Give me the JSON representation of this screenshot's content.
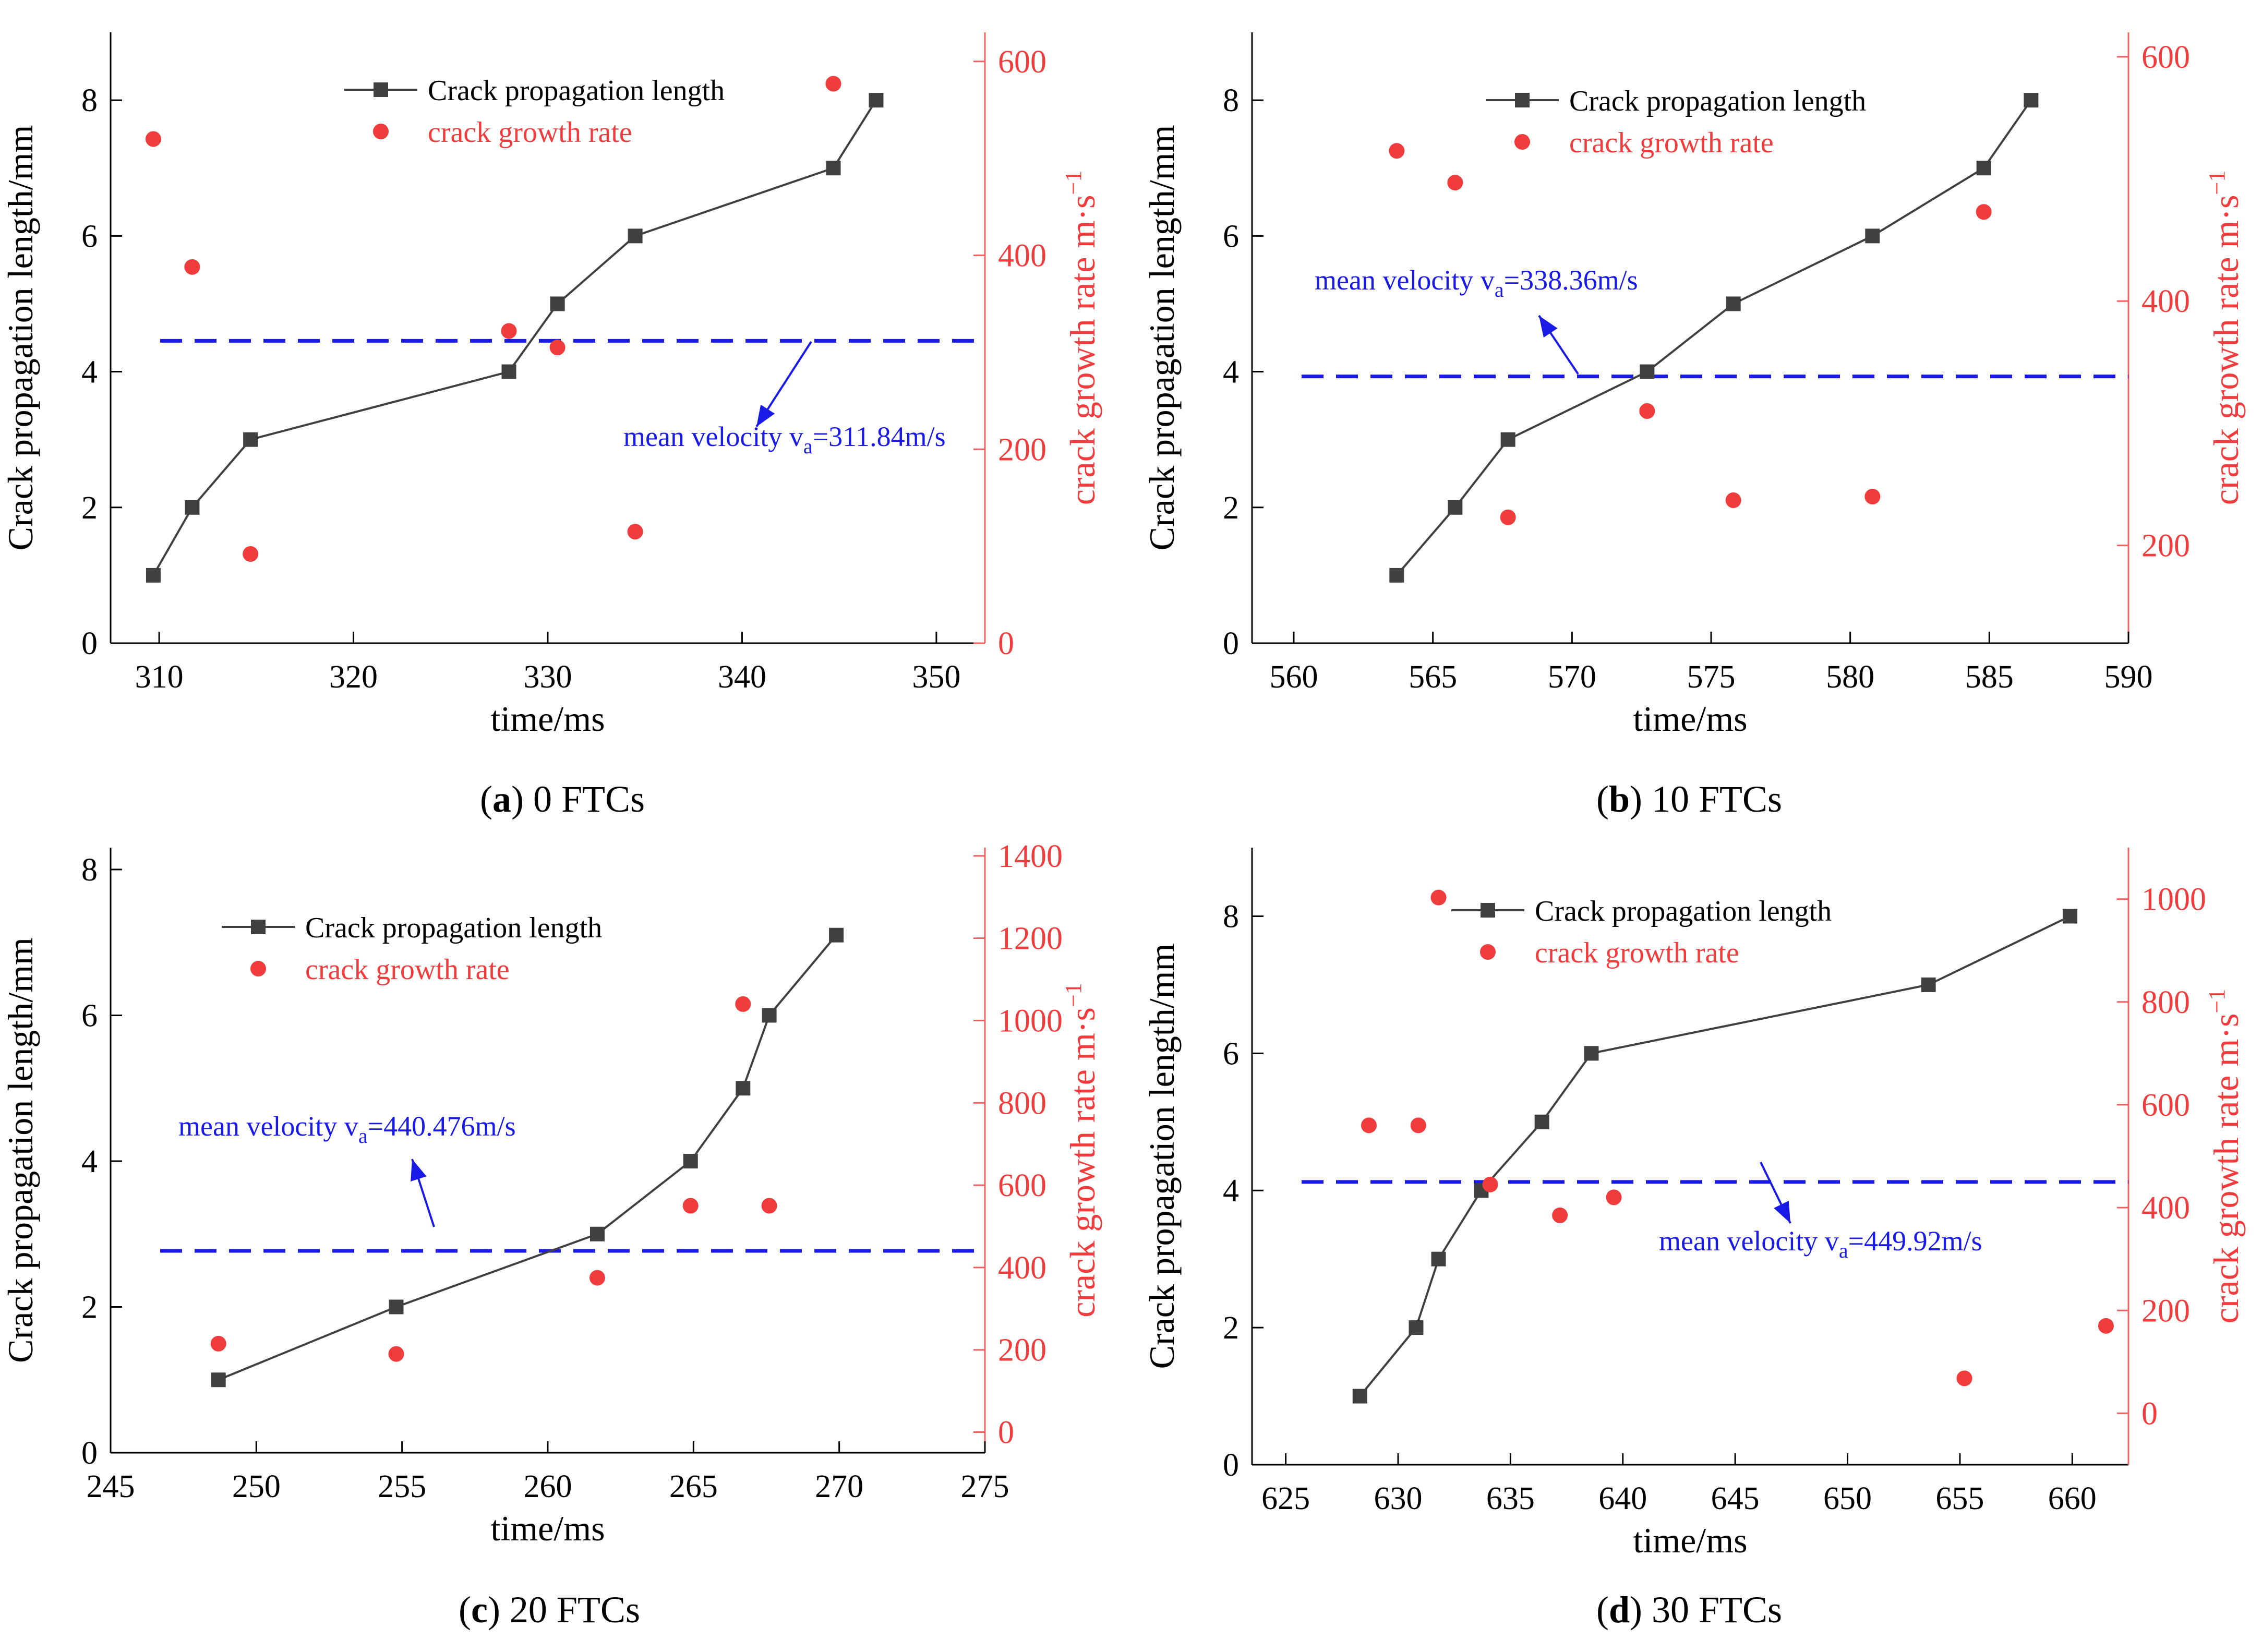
{
  "colors": {
    "line": "#404040",
    "rate": "#f03c3c",
    "mean": "#1a1ae6",
    "axis": "#000000",
    "axis_right": "#f06060"
  },
  "chart_data": [
    {
      "type": "line",
      "panel_tag": "a",
      "caption_text": " 0 FTCs",
      "xlabel": "time/ms",
      "ylabel_left": "Crack propagation length/mm",
      "ylabel_right": "crack growth rate m·s",
      "ylabel_right_sup": "−1",
      "xlim": [
        307.5,
        352.5
      ],
      "ylim_left": [
        0,
        9
      ],
      "ylim_right": [
        0,
        630
      ],
      "xticks": [
        310,
        320,
        330,
        340,
        350
      ],
      "yticks_left": [
        0,
        2,
        4,
        6,
        8
      ],
      "yticks_right": [
        0,
        200,
        400,
        600
      ],
      "legend_line": "Crack propagation length",
      "legend_dot": "crack growth rate",
      "series_length": {
        "name": "Crack propagation length",
        "x": [
          309.7,
          311.7,
          314.7,
          328.0,
          330.5,
          334.5,
          344.7,
          346.9
        ],
        "y": [
          1,
          2,
          3,
          4,
          5,
          6,
          7,
          8
        ]
      },
      "series_rate": {
        "name": "crack growth rate",
        "x": [
          309.7,
          311.7,
          314.7,
          328.0,
          330.5,
          334.5,
          344.7
        ],
        "y": [
          520,
          388,
          92,
          322,
          305,
          115,
          577
        ]
      },
      "mean_rate": 311.84,
      "mean_label_main": "mean velocity v",
      "mean_label_sub": "a",
      "mean_label_tail": "=311.84m/s"
    },
    {
      "type": "line",
      "panel_tag": "b",
      "caption_text": " 10 FTCs",
      "xlabel": "time/ms",
      "ylabel_left": "Crack propagation length/mm",
      "ylabel_right": "crack growth rate m·s",
      "ylabel_right_sup": "−1",
      "xlim": [
        558.5,
        590
      ],
      "ylim_left": [
        0,
        9
      ],
      "ylim_right": [
        120,
        620
      ],
      "xticks": [
        560,
        565,
        570,
        575,
        580,
        585,
        590
      ],
      "yticks_left": [
        0,
        2,
        4,
        6,
        8
      ],
      "yticks_right": [
        200,
        400,
        600
      ],
      "legend_line": "Crack propagation length",
      "legend_dot": "crack growth rate",
      "series_length": {
        "name": "Crack propagation length",
        "x": [
          563.7,
          565.8,
          567.7,
          572.7,
          575.8,
          580.8,
          584.8,
          586.5
        ],
        "y": [
          1,
          2,
          3,
          4,
          5,
          6,
          7,
          8
        ]
      },
      "series_rate": {
        "name": "crack growth rate",
        "x": [
          563.7,
          565.8,
          567.7,
          572.7,
          575.8,
          580.8,
          584.8
        ],
        "y": [
          523,
          497,
          223,
          310,
          237,
          240,
          473
        ]
      },
      "mean_rate": 338.36,
      "mean_label_main": "mean velocity v",
      "mean_label_sub": "a",
      "mean_label_tail": "=338.36m/s"
    },
    {
      "type": "line",
      "panel_tag": "c",
      "caption_text": " 20 FTCs",
      "xlabel": "time/ms",
      "ylabel_left": "Crack propagation length/mm",
      "ylabel_right": "crack growth rate m·s",
      "ylabel_right_sup": "−1",
      "xlim": [
        245,
        275
      ],
      "ylim_left": [
        0,
        8.3
      ],
      "ylim_right": [
        -50,
        1420
      ],
      "xticks": [
        245,
        250,
        255,
        260,
        265,
        270,
        275
      ],
      "yticks_left": [
        0,
        2,
        4,
        6,
        8
      ],
      "yticks_right": [
        0,
        200,
        400,
        600,
        800,
        1000,
        1200,
        1400
      ],
      "legend_line": "Crack propagation length",
      "legend_dot": "crack growth rate",
      "series_length": {
        "name": "Crack propagation length",
        "x": [
          248.7,
          254.8,
          261.7,
          264.9,
          266.7,
          267.6,
          269.9
        ],
        "y": [
          1.0,
          2.0,
          3.0,
          4.0,
          5.0,
          6.0,
          7.1
        ]
      },
      "series_rate": {
        "name": "crack growth rate",
        "x": [
          248.7,
          254.8,
          261.7,
          264.9,
          266.7,
          267.6
        ],
        "y": [
          215,
          190,
          375,
          550,
          1040,
          550
        ]
      },
      "mean_rate": 440.476,
      "mean_label_main": "mean velocity v",
      "mean_label_sub": "a",
      "mean_label_tail": "=440.476m/s"
    },
    {
      "type": "line",
      "panel_tag": "d",
      "caption_text": " 30 FTCs",
      "xlabel": "time/ms",
      "ylabel_left": "Crack propagation length/mm",
      "ylabel_right": "crack growth rate m·s",
      "ylabel_right_sup": "−1",
      "xlim": [
        623.5,
        662.5
      ],
      "ylim_left": [
        0,
        9
      ],
      "ylim_right": [
        -100,
        1100
      ],
      "xticks": [
        625,
        630,
        635,
        640,
        645,
        650,
        655,
        660
      ],
      "yticks_left": [
        0,
        2,
        4,
        6,
        8
      ],
      "yticks_right": [
        0,
        200,
        400,
        600,
        800,
        1000
      ],
      "legend_line": "Crack propagation length",
      "legend_dot": "crack growth rate",
      "series_length": {
        "name": "Crack propagation length",
        "x": [
          628.3,
          630.8,
          631.8,
          633.7,
          636.4,
          638.6,
          653.6,
          659.9
        ],
        "y": [
          1,
          2,
          3,
          4,
          5,
          6,
          7,
          8
        ]
      },
      "series_rate": {
        "name": "crack growth rate",
        "x": [
          628.7,
          630.9,
          631.8,
          634.1,
          637.2,
          639.6,
          655.2,
          661.5
        ],
        "y": [
          560,
          560,
          1003,
          445,
          385,
          420,
          68,
          170
        ]
      },
      "mean_rate": 449.92,
      "mean_label_main": "mean velocity v",
      "mean_label_sub": "a",
      "mean_label_tail": "=449.92m/s"
    }
  ]
}
